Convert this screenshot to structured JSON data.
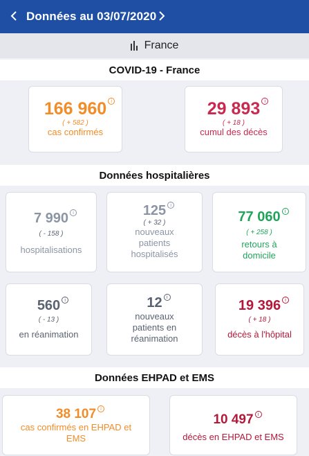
{
  "header": {
    "title": "Données au 03/07/2020"
  },
  "region": {
    "label": "France"
  },
  "sections": {
    "national": "COVID-19 - France",
    "hospital": "Données hospitalières",
    "ehpad": "Données EHPAD et EMS"
  },
  "national": {
    "cases": {
      "value": "166 960",
      "delta": "( + 582 )",
      "label": "cas confirmés"
    },
    "deaths": {
      "value": "29 893",
      "delta": "( + 18 )",
      "label": "cumul des décès"
    }
  },
  "hospital": {
    "hospitalisations": {
      "value": "7 990",
      "delta": "( - 158 )",
      "label": "hospitalisations"
    },
    "new_hosp": {
      "value": "125",
      "delta": "( + 32 )",
      "label": "nouveaux patients hospitalisés"
    },
    "returns": {
      "value": "77 060",
      "delta": "( + 258 )",
      "label": "retours à domicile"
    },
    "icu": {
      "value": "560",
      "delta": "( - 13 )",
      "label": "en réanimation"
    },
    "new_icu": {
      "value": "12",
      "label": "nouveaux patients en réanimation"
    },
    "hosp_deaths": {
      "value": "19 396",
      "delta": "( + 18 )",
      "label": "décès à l'hôpital"
    }
  },
  "ehpad": {
    "cases": {
      "value": "38 107",
      "label": "cas confirmés en EHPAD et EMS"
    },
    "deaths": {
      "value": "10 497",
      "label": "décès en EHPAD et EMS"
    }
  },
  "colors": {
    "header_bg": "#1f4fa5",
    "orange": "#f28c28",
    "red": "#c8294f",
    "grey": "#8c95a4",
    "green": "#1fa45a",
    "maroon": "#b2183a"
  },
  "icons": [
    "chevron-left-icon",
    "chevron-right-icon",
    "bar-chart-icon",
    "info-icon"
  ]
}
